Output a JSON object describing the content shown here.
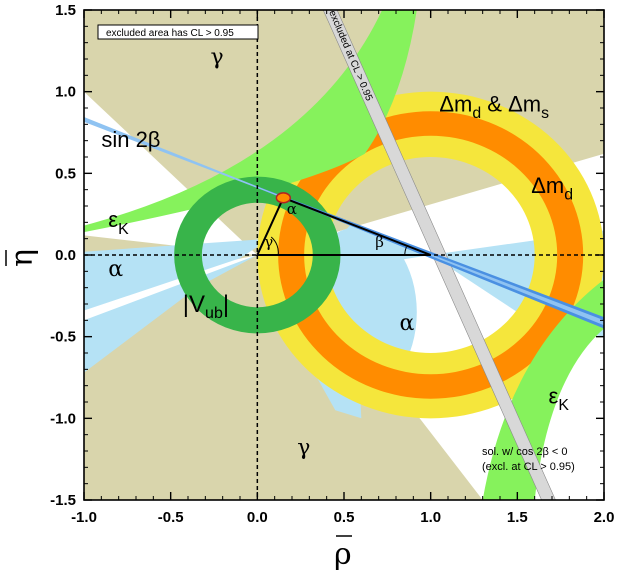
{
  "chart_data": {
    "type": "scatter",
    "xlabel": "ρ",
    "ylabel": "η",
    "xlim": [
      -1.0,
      2.0
    ],
    "ylim": [
      -1.5,
      1.5
    ],
    "x_ticks": [
      "-1.0",
      "-0.5",
      "0.0",
      "0.5",
      "1.0",
      "1.5",
      "2.0"
    ],
    "y_ticks": [
      "1.5",
      "1.0",
      "0.5",
      "0.0",
      "-0.5",
      "-1.0",
      "-1.5"
    ],
    "x_tick_values": [
      -1.0,
      -0.5,
      0.0,
      0.5,
      1.0,
      1.5,
      2.0
    ],
    "y_tick_values": [
      1.5,
      1.0,
      0.5,
      0.0,
      -0.5,
      -1.0,
      -1.5
    ],
    "legend_box_text": "excluded area has CL > 0.95",
    "excluded_strip_text": "excluded at CL > 0.95",
    "note_lines": [
      "sol. w/ cos 2β < 0",
      "(excl. at CL > 0.95)"
    ],
    "apex": {
      "rho": 0.15,
      "eta": 0.35
    },
    "constraints": [
      {
        "name": "sin 2β",
        "color": "#4a90e2",
        "slope": -0.4118,
        "intercept_rho": 1.0
      },
      {
        "name": "|Vub|",
        "color": "#38b44a",
        "center": [
          0.0,
          0.0
        ],
        "r_inner": 0.32,
        "r_outer": 0.48
      },
      {
        "name": "Δmd",
        "color": "#f5e63c",
        "center": [
          1.0,
          0.0
        ],
        "r_inner": 0.6,
        "r_outer": 1.0
      },
      {
        "name": "Δmd & Δms",
        "color": "#ff8c00",
        "center": [
          1.0,
          0.0
        ],
        "r_inner": 0.73,
        "r_outer": 0.88
      },
      {
        "name": "εK",
        "color": "#86f25c"
      },
      {
        "name": "α",
        "color": "#b5e2f5"
      },
      {
        "name": "γ",
        "color": "#d9d5ac"
      }
    ],
    "triangle": [
      [
        0.0,
        0.0
      ],
      [
        1.0,
        0.0
      ],
      [
        0.15,
        0.35
      ]
    ],
    "labels": {
      "dmd_dms": {
        "pre": "Δm",
        "sub1": "d",
        "mid": " & Δm",
        "sub2": "s",
        "rho": 1.05,
        "eta": 0.88
      },
      "dmd": {
        "pre": "Δm",
        "sub": "d",
        "rho": 1.58,
        "eta": 0.38
      },
      "sin2b": {
        "text": "sin 2β",
        "rho": -0.9,
        "eta": 0.66
      },
      "epsK_left": {
        "main": "ε",
        "sub": "K",
        "rho": -0.86,
        "eta": 0.17
      },
      "epsK_right": {
        "main": "ε",
        "sub": "K",
        "rho": 1.68,
        "eta": -0.91
      },
      "alpha_left": {
        "text": "α",
        "rho": -0.86,
        "eta": -0.13
      },
      "alpha_mid": {
        "text": "α",
        "rho": 0.82,
        "eta": -0.46
      },
      "alpha_apex": {
        "text": "α",
        "rho": 0.17,
        "eta": 0.25
      },
      "gamma_top": {
        "text": "γ",
        "rho": -0.27,
        "eta": 1.17
      },
      "gamma_bottom": {
        "text": "γ",
        "rho": 0.23,
        "eta": -1.22
      },
      "gamma_apex": {
        "text": "γ",
        "rho": 0.04,
        "eta": 0.05
      },
      "beta": {
        "text": "β",
        "rho": 0.68,
        "eta": 0.05
      },
      "vub": {
        "pre": "|V",
        "sub": "ub",
        "post": "|",
        "rho": -0.43,
        "eta": -0.35
      }
    }
  }
}
